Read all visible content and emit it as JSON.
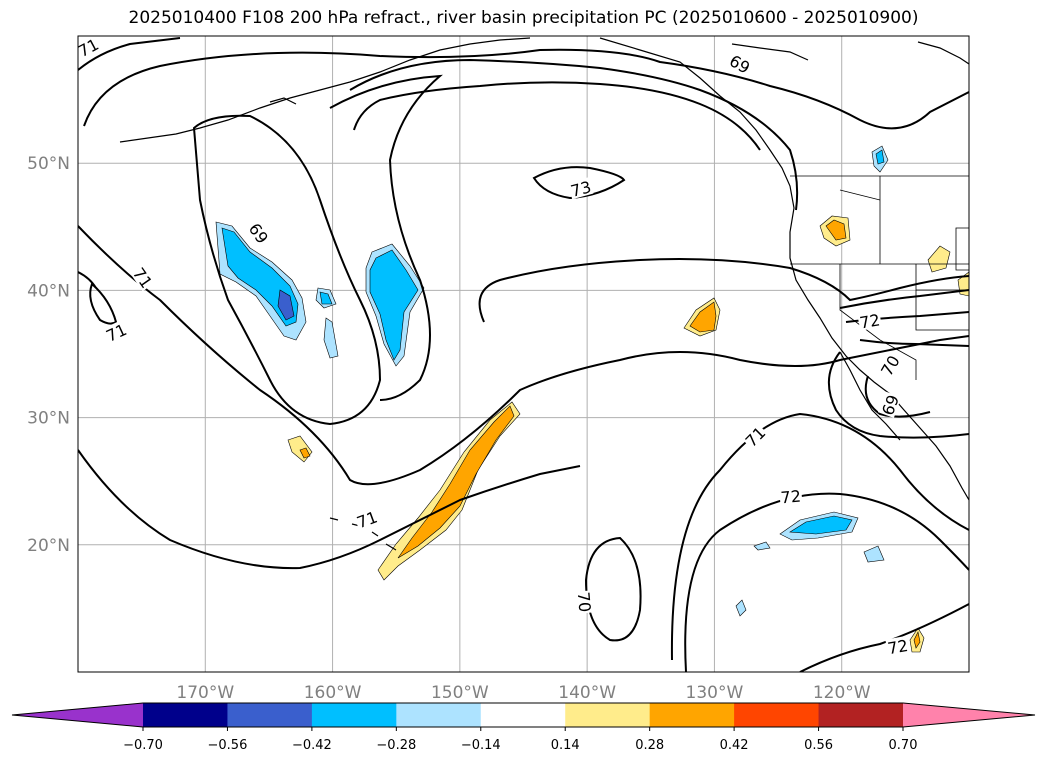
{
  "title": "2025010400 F108 200 hPa refract., river basin precipitation PC (2025010600 - 2025010900)",
  "map": {
    "projection": "PlateCarree",
    "lon_range": [
      -180,
      -110
    ],
    "lat_range": [
      10,
      60
    ],
    "lon_ticks": [
      {
        "value": -170,
        "label": "170°W"
      },
      {
        "value": -160,
        "label": "160°W"
      },
      {
        "value": -150,
        "label": "150°W"
      },
      {
        "value": -140,
        "label": "140°W"
      },
      {
        "value": -130,
        "label": "130°W"
      },
      {
        "value": -120,
        "label": "120°W"
      }
    ],
    "lat_ticks": [
      {
        "value": 20,
        "label": "20°N"
      },
      {
        "value": 30,
        "label": "30°N"
      },
      {
        "value": 40,
        "label": "40°N"
      },
      {
        "value": 50,
        "label": "50°N"
      }
    ],
    "grid": true,
    "contour_labels": [
      {
        "text": "71",
        "lon": -179.2,
        "lat": 59.1,
        "rot": -28
      },
      {
        "text": "69",
        "lon": -128.0,
        "lat": 57.8,
        "rot": 30
      },
      {
        "text": "73",
        "lon": -140.5,
        "lat": 48.0,
        "rot": -15
      },
      {
        "text": "69",
        "lon": -165.8,
        "lat": 44.5,
        "rot": 55
      },
      {
        "text": "71",
        "lon": -174.9,
        "lat": 41.0,
        "rot": 55
      },
      {
        "text": "71",
        "lon": -177.0,
        "lat": 36.7,
        "rot": -25
      },
      {
        "text": "72",
        "lon": -117.8,
        "lat": 37.6,
        "rot": -10
      },
      {
        "text": "70",
        "lon": -116.2,
        "lat": 34.1,
        "rot": -60
      },
      {
        "text": "69",
        "lon": -116.2,
        "lat": 31.0,
        "rot": -70
      },
      {
        "text": "71",
        "lon": -126.8,
        "lat": 28.5,
        "rot": -45
      },
      {
        "text": "72",
        "lon": -124.0,
        "lat": 23.8,
        "rot": -5
      },
      {
        "text": "71",
        "lon": -157.3,
        "lat": 22.0,
        "rot": -20
      },
      {
        "text": "70",
        "lon": -140.2,
        "lat": 15.5,
        "rot": 85
      },
      {
        "text": "72",
        "lon": -115.6,
        "lat": 12.0,
        "rot": -10
      }
    ]
  },
  "colorbar": {
    "levels": [
      "−0.70",
      "−0.56",
      "−0.42",
      "−0.28",
      "−0.14",
      "0.14",
      "0.28",
      "0.42",
      "0.56",
      "0.70"
    ],
    "colors": [
      "#9932CC",
      "#00008B",
      "#3A5FCD",
      "#00BFFF",
      "#ADE3FF",
      "#FFFFFF",
      "#FFEC8B",
      "#FFA500",
      "#FF4500",
      "#B22222",
      "#FF82AB"
    ]
  }
}
